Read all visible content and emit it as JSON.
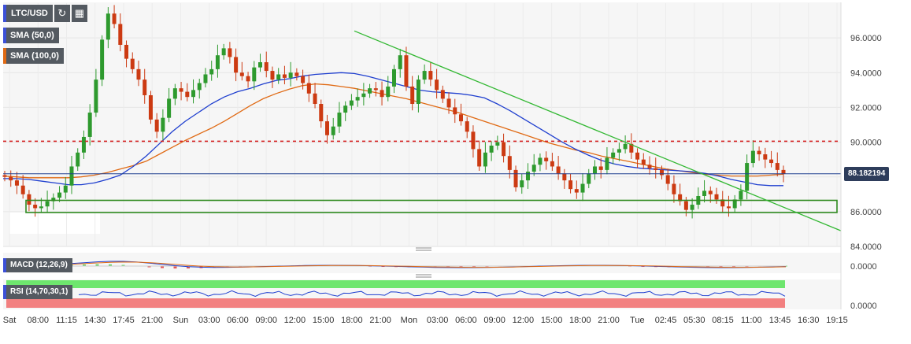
{
  "toolbar": {
    "symbol": "LTC/USD",
    "refresh_icon": "refresh-icon",
    "calendar_icon": "calendar-icon"
  },
  "indicators": {
    "sma50": {
      "label": "SMA (50,0)",
      "color": "#1f3fcf"
    },
    "sma100": {
      "label": "SMA (100,0)",
      "color": "#e06a14"
    },
    "macd": {
      "label": "MACD (12,26,9)",
      "value_label": "0.0000"
    },
    "rsi": {
      "label": "RSI (14,70,30,1)",
      "value_label": "0.0000"
    }
  },
  "price_tag": {
    "label": "88.182194",
    "color": "#2e3d5b"
  },
  "colors": {
    "up": "#2e9a2e",
    "down": "#cc3a12",
    "trendline": "#33b833",
    "resistance": "#d62020",
    "support_box": "#2f8a1f",
    "price_line": "#1f3f8f"
  },
  "chart_data": {
    "type": "candlestick",
    "title": "LTC/USD",
    "ylim": [
      84.0,
      98.0
    ],
    "y_ticks": [
      "84.0000",
      "86.0000",
      "88.0000",
      "90.0000",
      "92.0000",
      "94.0000",
      "96.0000"
    ],
    "x_ticks": [
      "Sat",
      "08:00",
      "11:15",
      "14:30",
      "17:45",
      "21:00",
      "Sun",
      "03:00",
      "06:00",
      "09:00",
      "12:00",
      "15:00",
      "18:00",
      "21:00",
      "Mon",
      "03:00",
      "06:00",
      "09:00",
      "12:00",
      "15:00",
      "18:00",
      "21:00",
      "Tue",
      "02:45",
      "05:30",
      "08:15",
      "11:00",
      "13:45",
      "16:30",
      "19:15"
    ],
    "last_price": 88.182194,
    "resistance_level": 90.05,
    "support_zone": [
      85.95,
      86.65
    ],
    "trendline": {
      "from": [
        0,
        96.4
      ],
      "to": [
        1,
        84.9
      ]
    },
    "close_series": [
      88.0,
      87.8,
      87.5,
      87.0,
      86.4,
      86.2,
      86.3,
      86.6,
      86.8,
      87.1,
      87.5,
      88.6,
      89.4,
      90.3,
      91.7,
      93.6,
      95.9,
      97.4,
      96.8,
      95.6,
      94.8,
      94.2,
      93.6,
      92.7,
      91.3,
      90.6,
      91.4,
      92.5,
      93.1,
      92.9,
      92.6,
      93.0,
      93.4,
      93.9,
      94.2,
      95.0,
      95.4,
      94.9,
      94.0,
      93.8,
      93.5,
      94.3,
      94.6,
      94.1,
      93.6,
      93.9,
      93.7,
      94.0,
      93.8,
      93.4,
      92.8,
      92.2,
      91.2,
      90.4,
      90.9,
      91.7,
      92.1,
      92.4,
      92.6,
      92.8,
      93.1,
      93.0,
      92.6,
      93.2,
      94.2,
      95.0,
      93.2,
      92.2,
      93.6,
      94.1,
      93.6,
      93.0,
      92.5,
      92.0,
      91.6,
      91.2,
      90.6,
      89.6,
      88.6,
      89.4,
      89.8,
      90.0,
      89.2,
      88.4,
      87.4,
      87.8,
      88.3,
      88.7,
      89.1,
      88.9,
      88.6,
      88.2,
      87.8,
      87.3,
      87.1,
      87.6,
      88.2,
      88.6,
      88.4,
      89.1,
      89.4,
      89.6,
      89.9,
      89.4,
      89.0,
      88.7,
      88.5,
      88.4,
      88.1,
      87.6,
      87.0,
      86.6,
      86.1,
      86.4,
      86.9,
      87.2,
      87.0,
      86.7,
      86.3,
      86.2,
      86.7,
      87.2,
      88.8,
      89.5,
      89.3,
      89.0,
      88.8,
      88.4,
      88.18
    ],
    "sma50_series": [
      87.9,
      87.9,
      87.85,
      87.75,
      87.65,
      87.55,
      87.55,
      87.65,
      87.85,
      88.1,
      88.6,
      89.2,
      89.9,
      90.6,
      91.2,
      91.7,
      92.2,
      92.6,
      92.9,
      93.1,
      93.35,
      93.55,
      93.65,
      93.8,
      93.9,
      93.95,
      94.0,
      93.95,
      93.8,
      93.6,
      93.4,
      93.2,
      93.0,
      92.9,
      92.85,
      92.8,
      92.7,
      92.55,
      92.2,
      91.8,
      91.35,
      90.9,
      90.45,
      90.0,
      89.6,
      89.25,
      88.95,
      88.75,
      88.6,
      88.5,
      88.45,
      88.4,
      88.35,
      88.3,
      88.2,
      88.05,
      87.85,
      87.7,
      87.55,
      87.5,
      87.5
    ],
    "sma100_series": [
      88.05,
      88.0,
      87.95,
      87.95,
      87.95,
      87.95,
      88.0,
      88.1,
      88.25,
      88.45,
      88.65,
      88.9,
      89.3,
      89.7,
      90.1,
      90.45,
      90.8,
      91.2,
      91.65,
      92.1,
      92.5,
      92.8,
      93.05,
      93.25,
      93.35,
      93.3,
      93.2,
      93.1,
      92.95,
      92.8,
      92.65,
      92.5,
      92.3,
      92.1,
      91.9,
      91.7,
      91.45,
      91.2,
      90.95,
      90.7,
      90.45,
      90.2,
      89.95,
      89.75,
      89.55,
      89.4,
      89.2,
      89.05,
      88.9,
      88.75,
      88.6,
      88.45,
      88.35,
      88.25,
      88.15,
      88.1,
      88.05,
      88.05,
      88.05,
      88.1,
      88.15
    ],
    "series": [
      {
        "name": "SMA (50,0)"
      },
      {
        "name": "SMA (100,0)"
      }
    ],
    "grid": true
  }
}
